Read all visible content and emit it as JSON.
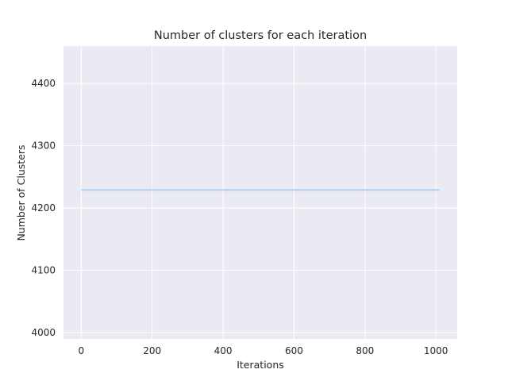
{
  "chart_data": {
    "type": "line",
    "title": "Number of clusters for each iteration",
    "xlabel": "Iterations",
    "ylabel": "Number of Clusters",
    "xlim": [
      -50,
      1060
    ],
    "ylim": [
      3990,
      4460
    ],
    "xticks": [
      0,
      200,
      400,
      600,
      800,
      1000
    ],
    "yticks": [
      4000,
      4100,
      4200,
      4300,
      4400
    ],
    "grid": true,
    "series": [
      {
        "color": "#a1c9f4",
        "x": [
          0,
          1010
        ],
        "y": [
          4229,
          4229
        ]
      }
    ]
  }
}
